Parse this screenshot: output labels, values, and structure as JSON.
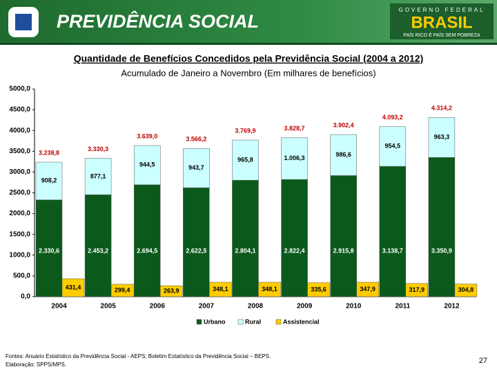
{
  "header": {
    "brand": "PREVIDÊNCIA SOCIAL",
    "gov_top": "GOVERNO FEDERAL",
    "gov_name": "BRASIL",
    "gov_motto": "PAÍS RICO É PAÍS SEM POBREZA"
  },
  "chart_data": {
    "type": "grouped-stacked-bar",
    "title": "Quantidade de Benefícios Concedidos pela Previdência Social (2004 a 2012)",
    "subtitle": "Acumulado de Janeiro a Novembro (Em milhares de benefícios)",
    "categories": [
      "2004",
      "2005",
      "2006",
      "2007",
      "2008",
      "2009",
      "2010",
      "2011",
      "2012"
    ],
    "series": [
      {
        "name": "Urbano",
        "color": "#0b5a1c",
        "stack": "a",
        "values": [
          2330.6,
          2453.2,
          2694.5,
          2622.5,
          2804.1,
          2822.4,
          2915.8,
          3138.7,
          3350.9
        ],
        "value_labels": [
          "2.330,6",
          "2.453,2",
          "2.694,5",
          "2.622,5",
          "2.804,1",
          "2.822,4",
          "2.915,8",
          "3.138,7",
          "3.350,9"
        ]
      },
      {
        "name": "Rural",
        "color": "#ccffff",
        "stack": "a",
        "values": [
          908.2,
          877.1,
          944.5,
          943.7,
          965.8,
          1006.3,
          986.6,
          954.5,
          963.3
        ],
        "value_labels": [
          "908,2",
          "877,1",
          "944,5",
          "943,7",
          "965,8",
          "1.006,3",
          "986,6",
          "954,5",
          "963,3"
        ]
      },
      {
        "name": "Assistencial",
        "color": "#ffcc00",
        "stack": "b",
        "values": [
          431.4,
          299.4,
          263.9,
          348.1,
          348.1,
          335.6,
          347.9,
          317.9,
          304.8
        ],
        "value_labels": [
          "431,4",
          "299,4",
          "263,9",
          "348,1",
          "348,1",
          "335,6",
          "347,9",
          "317,9",
          "304,8"
        ]
      }
    ],
    "totals": {
      "values": [
        3238.8,
        3330.3,
        3639.0,
        3566.2,
        3769.9,
        3828.7,
        3902.4,
        4093.2,
        4314.2
      ],
      "value_labels": [
        "3.238,8",
        "3.330,3",
        "3.639,0",
        "3.566,2",
        "3.769,9",
        "3.828,7",
        "3.902,4",
        "4.093,2",
        "4.314,2"
      ]
    },
    "ylim": [
      0,
      5000
    ],
    "yticks": [
      {
        "value": 0,
        "label": "0,0"
      },
      {
        "value": 500,
        "label": "500,0"
      },
      {
        "value": 1000,
        "label": "1000,0"
      },
      {
        "value": 1500,
        "label": "1500,0"
      },
      {
        "value": 2000,
        "label": "2000,0"
      },
      {
        "value": 2500,
        "label": "2500,0"
      },
      {
        "value": 3000,
        "label": "3000,0"
      },
      {
        "value": 3500,
        "label": "3500,0"
      },
      {
        "value": 4000,
        "label": "4000,0"
      },
      {
        "value": 4500,
        "label": "4500,0"
      },
      {
        "value": 5000,
        "label": "5000,0"
      }
    ],
    "grid": false,
    "legend": "bottom"
  },
  "footer": {
    "source": "Fontes: Anuário Estatístico da Previdência Social - AEPS; Boletim Estatístico da Previdência Social – BEPS.",
    "credit": "Elaboração: SPPS/MPS.",
    "page": "27"
  }
}
